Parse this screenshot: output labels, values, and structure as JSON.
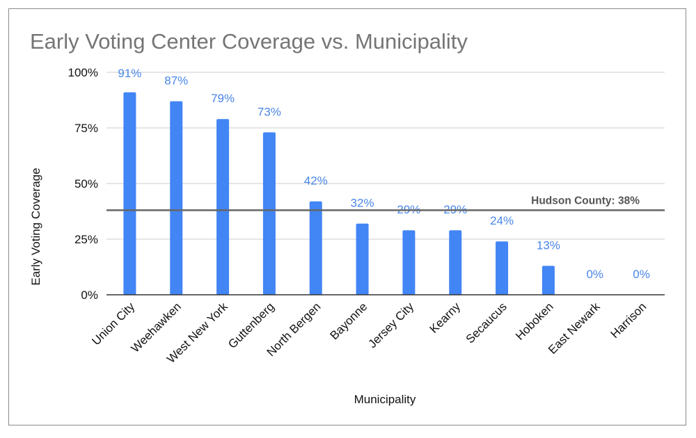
{
  "chart_data": {
    "type": "bar",
    "title": "Early Voting Center Coverage vs. Municipality",
    "xlabel": "Municipality",
    "ylabel": "Early Voting Coverage",
    "ylim": [
      0,
      100
    ],
    "yticks": [
      0,
      25,
      50,
      75,
      100
    ],
    "ytick_labels": [
      "0%",
      "25%",
      "50%",
      "75%",
      "100%"
    ],
    "categories": [
      "Union City",
      "Weehawken",
      "West New York",
      "Guttenberg",
      "North Bergen",
      "Bayonne",
      "Jersey City",
      "Kearny",
      "Secaucus",
      "Hoboken",
      "East Newark",
      "Harrison"
    ],
    "values": [
      91,
      87,
      79,
      73,
      42,
      32,
      29,
      29,
      24,
      13,
      0,
      0
    ],
    "data_labels": [
      "91%",
      "87%",
      "79%",
      "73%",
      "42%",
      "32%",
      "29%",
      "29%",
      "24%",
      "13%",
      "0%",
      "0%"
    ],
    "grid": true,
    "reference_line": {
      "value": 38,
      "label": "Hudson County: 38%"
    },
    "colors": {
      "bar": "#4285f4",
      "data_label": "#4a86e8",
      "reference_line": "#666666",
      "grid": "#cccccc",
      "axis": "#333333",
      "title": "#757575"
    }
  }
}
